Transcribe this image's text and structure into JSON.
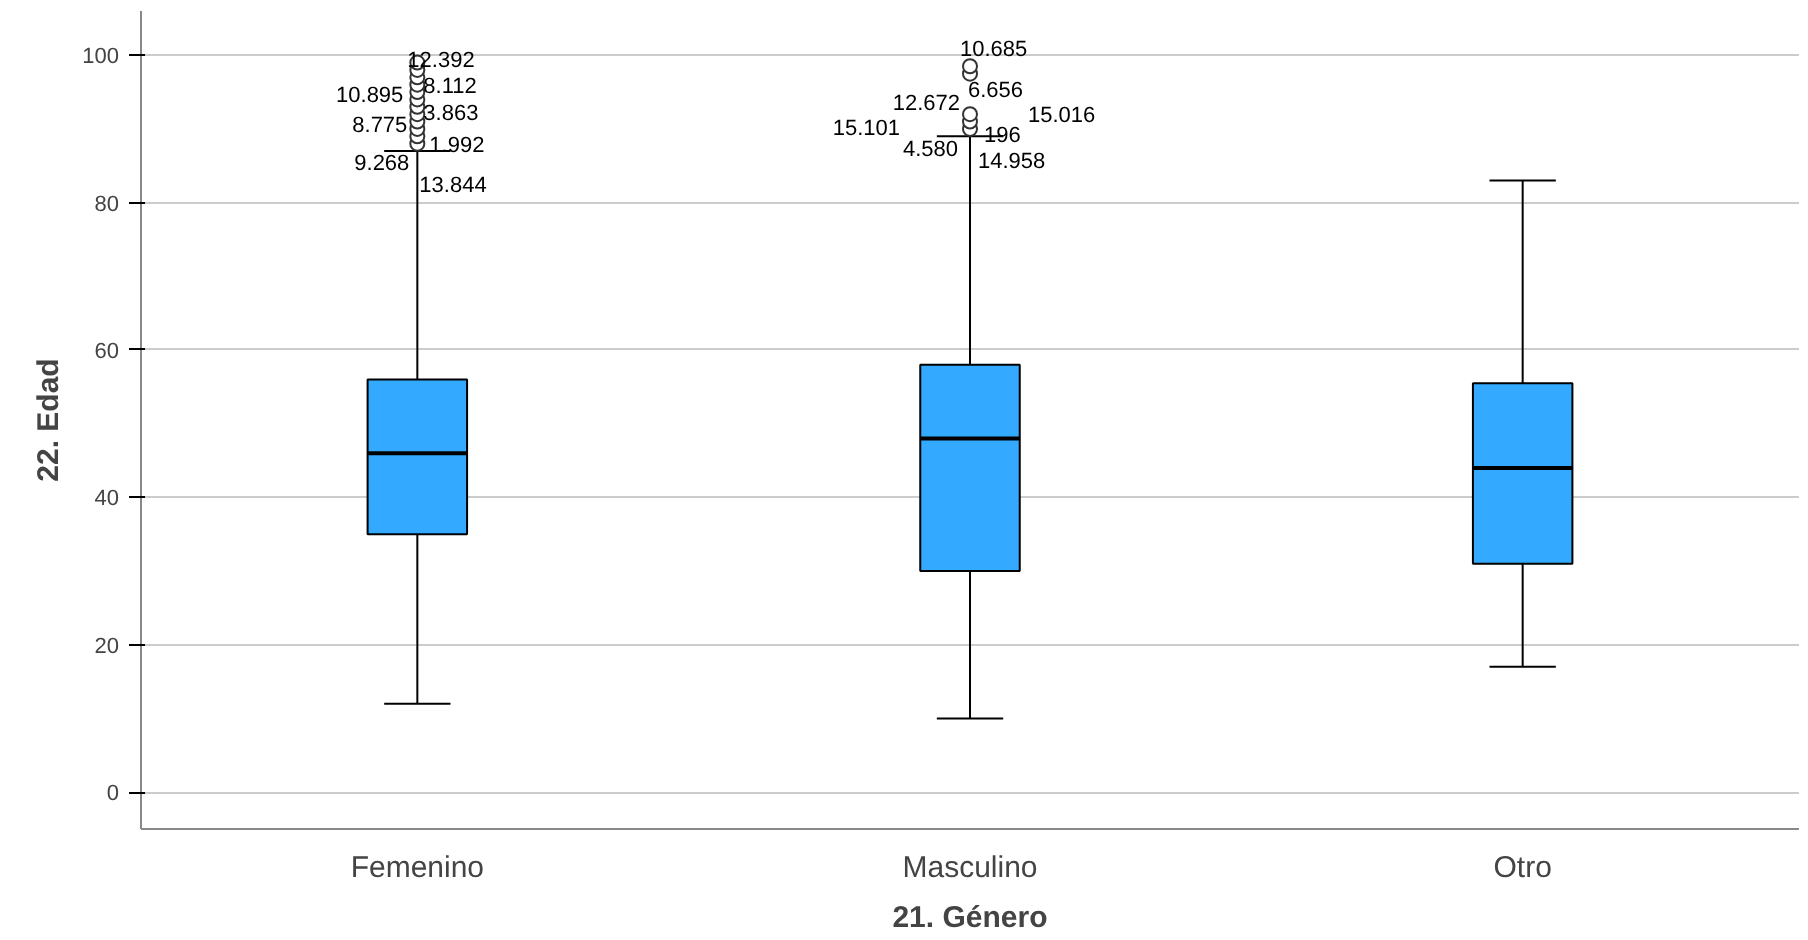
{
  "chart_data": {
    "type": "box",
    "xlabel": "21. Género",
    "ylabel": "22. Edad",
    "categories": [
      "Femenino",
      "Masculino",
      "Otro"
    ],
    "series": [
      {
        "color": "#33aaff",
        "boxes": [
          {
            "low": 12,
            "q1": 35,
            "median": 46,
            "q3": 56,
            "high": 87,
            "outliers": [
              88,
              89,
              90,
              91,
              92,
              93,
              94,
              95,
              96,
              97,
              98,
              99
            ]
          },
          {
            "low": 10,
            "q1": 30,
            "median": 48,
            "q3": 58,
            "high": 89,
            "outliers": [
              90,
              91,
              92,
              97.5,
              98.5
            ]
          },
          {
            "low": 17,
            "q1": 31,
            "median": 44,
            "q3": 55.5,
            "high": 83
          }
        ]
      }
    ],
    "ylim": [
      -5,
      106
    ],
    "yticks": [
      0,
      20,
      40,
      60,
      80,
      100
    ],
    "grid": "y",
    "annotations": [
      "12.392",
      "10.895",
      "8.112",
      "8.775",
      "3.863",
      "9.268",
      "1.992",
      "13.844",
      "10.685",
      "12.672",
      "6.656",
      "15.101",
      "15.016",
      "4.580",
      "196",
      "14.958"
    ]
  }
}
